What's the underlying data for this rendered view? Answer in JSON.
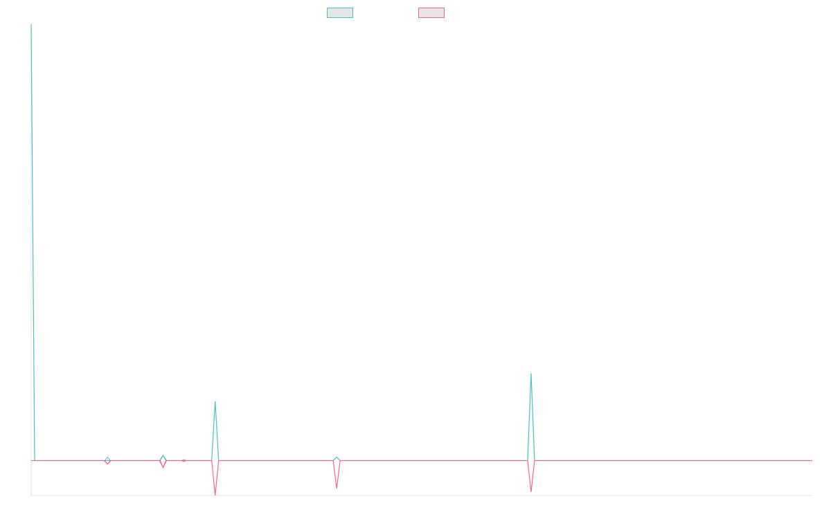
{
  "chart_data": {
    "type": "line",
    "title": "",
    "xlabel": "",
    "ylabel": "",
    "grid": false,
    "legend_position": "top-center",
    "x": [
      0,
      1,
      2,
      3,
      4,
      5,
      6,
      7,
      8,
      9,
      10,
      11,
      12,
      13,
      14,
      15,
      16,
      17,
      18,
      19,
      20,
      21,
      22,
      23,
      24,
      25,
      26,
      27,
      28,
      29,
      30,
      31,
      32,
      33,
      34,
      35,
      36,
      37,
      38,
      39,
      40,
      41,
      42,
      43,
      44,
      45,
      46,
      47,
      48,
      49,
      50,
      51,
      52,
      53,
      54,
      55,
      56,
      57,
      58,
      59,
      60,
      61,
      62,
      63,
      64,
      65,
      66,
      67,
      68,
      69,
      70,
      71,
      72,
      73,
      74,
      75,
      76,
      77,
      78,
      79,
      80,
      81,
      82,
      83,
      84,
      85,
      86,
      87,
      88,
      89,
      90,
      91,
      92,
      93,
      94,
      95,
      96,
      97,
      98,
      99,
      100,
      101,
      102,
      103,
      104,
      105,
      106,
      107,
      108,
      109,
      110,
      111,
      112,
      113,
      114,
      115,
      116,
      117,
      118,
      119,
      120,
      121,
      122,
      123,
      124,
      125,
      126,
      127,
      128,
      129,
      130,
      131,
      132,
      133,
      134,
      135,
      136,
      137,
      138,
      139,
      140,
      141,
      142,
      143,
      144,
      145,
      146,
      147,
      148,
      149,
      150,
      151,
      152,
      153,
      154,
      155,
      156,
      157,
      158,
      159,
      160,
      161,
      162,
      163,
      164,
      165,
      166,
      167,
      168,
      169,
      170,
      171,
      172,
      173,
      174,
      175,
      176,
      177,
      178,
      179,
      180,
      181,
      182,
      183,
      184,
      185,
      186,
      187,
      188,
      189,
      190,
      191,
      192,
      193,
      194,
      195,
      196,
      197,
      198,
      199,
      200,
      201,
      202,
      203,
      204,
      205,
      206,
      207,
      208,
      209,
      210,
      211,
      212,
      213,
      214,
      215,
      216,
      217,
      218,
      219,
      220,
      221,
      222,
      223,
      224,
      225
    ],
    "ylim": [
      -1,
      12.5
    ],
    "series": [
      {
        "color": "#4bc0c0",
        "values": {
          "0": 12.5,
          "1": 0,
          "22": 0,
          "38": 0.15,
          "52": 0,
          "53": 1.7,
          "54": 0,
          "88": 0.1,
          "143": 0,
          "144": 2.5,
          "145": 0
        }
      },
      {
        "color": "#ff6384",
        "values": {
          "0": 0,
          "22": -0.1,
          "38": -0.2,
          "52": 0,
          "53": -1.0,
          "54": 0,
          "88": -0.8,
          "143": 0,
          "144": -0.9,
          "145": 0
        }
      }
    ],
    "markers": [
      {
        "x": 22,
        "upper": 0.1,
        "lower": -0.1
      },
      {
        "x": 38,
        "upper": 0.15,
        "lower": -0.2
      },
      {
        "x": 44,
        "upper": 0.03,
        "lower": -0.03
      }
    ]
  }
}
